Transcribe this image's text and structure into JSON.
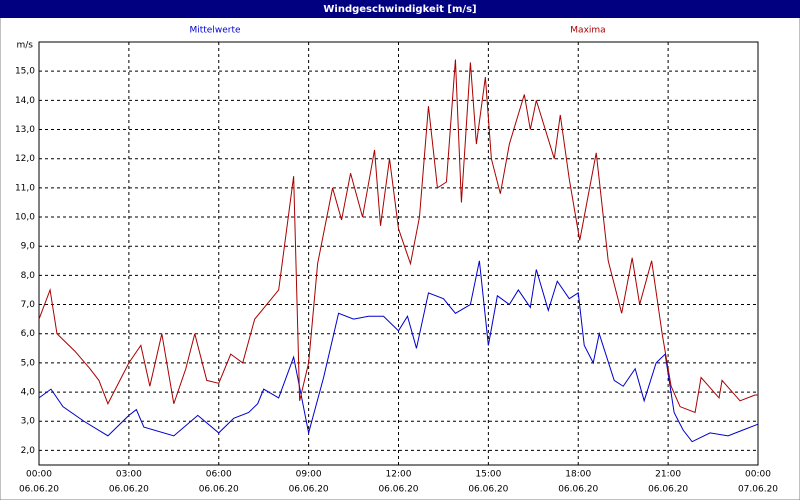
{
  "chart_data": {
    "type": "line",
    "title": "Windgeschwindigkeit [m/s]",
    "y_unit": "m/s",
    "grid": true,
    "xlim": [
      0,
      24
    ],
    "ylim": [
      1.5,
      16
    ],
    "xticks": [
      {
        "value": 0,
        "label": "00:00"
      },
      {
        "value": 3,
        "label": "03:00"
      },
      {
        "value": 6,
        "label": "06:00"
      },
      {
        "value": 9,
        "label": "09:00"
      },
      {
        "value": 12,
        "label": "12:00"
      },
      {
        "value": 15,
        "label": "15:00"
      },
      {
        "value": 18,
        "label": "18:00"
      },
      {
        "value": 21,
        "label": "21:00"
      },
      {
        "value": 24,
        "label": "00:00"
      }
    ],
    "xtick_dates": [
      "06.06.20",
      "06.06.20",
      "06.06.20",
      "06.06.20",
      "06.06.20",
      "06.06.20",
      "06.06.20",
      "06.06.20",
      "07.06.20"
    ],
    "yticks": [
      {
        "value": 2,
        "label": "2,0"
      },
      {
        "value": 3,
        "label": "3,0"
      },
      {
        "value": 4,
        "label": "4,0"
      },
      {
        "value": 5,
        "label": "5,0"
      },
      {
        "value": 6,
        "label": "6,0"
      },
      {
        "value": 7,
        "label": "7,0"
      },
      {
        "value": 8,
        "label": "8,0"
      },
      {
        "value": 9,
        "label": "9,0"
      },
      {
        "value": 10,
        "label": "10,0"
      },
      {
        "value": 11,
        "label": "11,0"
      },
      {
        "value": 12,
        "label": "12,0"
      },
      {
        "value": 13,
        "label": "13,0"
      },
      {
        "value": 14,
        "label": "14,0"
      },
      {
        "value": 15,
        "label": "15,0"
      }
    ],
    "series": [
      {
        "name": "Mittelwerte",
        "color": "#0000cc",
        "x": [
          0,
          0.4,
          0.8,
          1.5,
          2.3,
          3.0,
          3.25,
          3.5,
          4.5,
          5.3,
          6.0,
          6.5,
          7.0,
          7.3,
          7.5,
          8.0,
          8.5,
          9.0,
          9.5,
          10.0,
          10.5,
          11.0,
          11.5,
          12.0,
          12.3,
          12.6,
          13.0,
          13.5,
          13.9,
          14.4,
          14.7,
          15.0,
          15.3,
          15.7,
          16.0,
          16.4,
          16.6,
          17.0,
          17.3,
          17.7,
          18.0,
          18.2,
          18.5,
          18.7,
          19.2,
          19.5,
          19.9,
          20.2,
          20.6,
          20.9,
          21.2,
          21.5,
          21.8,
          22.4,
          23.0,
          23.5,
          24.0
        ],
        "values": [
          3.8,
          4.1,
          3.5,
          3.0,
          2.5,
          3.2,
          3.4,
          2.8,
          2.5,
          3.2,
          2.6,
          3.1,
          3.3,
          3.6,
          4.1,
          3.8,
          5.2,
          2.6,
          4.5,
          6.7,
          6.5,
          6.6,
          6.6,
          6.1,
          6.6,
          5.5,
          7.4,
          7.2,
          6.7,
          7.0,
          8.5,
          5.6,
          7.3,
          7.0,
          7.5,
          6.9,
          8.2,
          6.8,
          7.8,
          7.2,
          7.4,
          5.6,
          5.0,
          6.0,
          4.4,
          4.2,
          4.8,
          3.7,
          5.0,
          5.3,
          3.3,
          2.7,
          2.3,
          2.6,
          2.5,
          2.7,
          2.9
        ]
      },
      {
        "name": "Maxima",
        "color": "#aa0000",
        "x": [
          0,
          0.37,
          0.6,
          1.2,
          1.7,
          2.0,
          2.3,
          2.7,
          3.0,
          3.4,
          3.7,
          4.1,
          4.5,
          4.9,
          5.2,
          5.6,
          6.0,
          6.4,
          6.8,
          7.2,
          7.6,
          8.0,
          8.5,
          8.7,
          9.0,
          9.3,
          9.8,
          10.1,
          10.4,
          10.8,
          11.2,
          11.4,
          11.7,
          12.0,
          12.4,
          12.7,
          13.0,
          13.3,
          13.6,
          13.9,
          14.1,
          14.4,
          14.6,
          14.9,
          15.1,
          15.4,
          15.7,
          16.2,
          16.4,
          16.6,
          16.9,
          17.2,
          17.4,
          17.7,
          18.05,
          18.6,
          19.0,
          19.45,
          19.8,
          20.05,
          20.45,
          20.8,
          21.1,
          21.4,
          21.9,
          22.1,
          22.7,
          22.8,
          23.4,
          23.9,
          24.0
        ],
        "values": [
          6.5,
          7.5,
          6.0,
          5.4,
          4.8,
          4.4,
          3.6,
          4.4,
          5.0,
          5.6,
          4.2,
          6.0,
          3.6,
          4.8,
          6.0,
          4.4,
          4.3,
          5.3,
          5.0,
          6.5,
          7.0,
          7.5,
          11.4,
          3.7,
          5.0,
          8.4,
          11.0,
          9.9,
          11.5,
          10.0,
          12.3,
          9.7,
          12.0,
          9.6,
          8.4,
          10.0,
          13.8,
          11.0,
          11.2,
          15.4,
          10.5,
          15.3,
          12.5,
          14.8,
          12.0,
          10.8,
          12.5,
          14.2,
          13.0,
          14.0,
          13.0,
          12.0,
          13.5,
          11.3,
          9.2,
          12.2,
          8.5,
          6.7,
          8.6,
          7.0,
          8.5,
          6.0,
          4.2,
          3.5,
          3.3,
          4.5,
          3.8,
          4.4,
          3.7,
          3.9,
          3.9
        ]
      }
    ]
  }
}
